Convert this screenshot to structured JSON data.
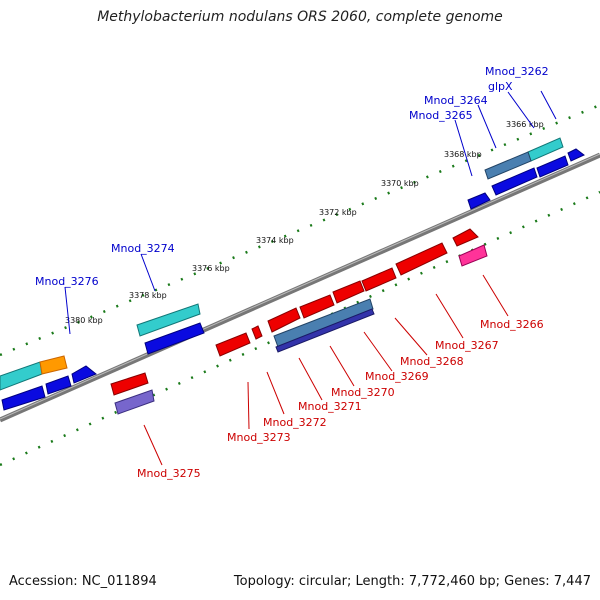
{
  "title": "Methylobacterium nodulans ORS 2060, complete genome",
  "footer": {
    "accession": "Accession: NC_011894",
    "summary": "Topology: circular; Length: 7,772,460 bp; Genes: 7,447"
  },
  "scale_labels": [
    "3366 kbp",
    "3368 kbp",
    "3370 kbp",
    "3372 kbp",
    "3374 kbp",
    "3376 kbp",
    "3378 kbp",
    "3380 kbp"
  ],
  "colors": {
    "backbone": "#808080",
    "label_forward": "#0000cc",
    "label_reverse": "#cc0000",
    "tick_green": "#1a7a1a"
  },
  "gene_labels_top": [
    "Mnod_3262",
    "glpX",
    "Mnod_3264",
    "Mnod_3265",
    "Mnod_3274",
    "Mnod_3276"
  ],
  "gene_labels_bottom": [
    "Mnod_3266",
    "Mnod_3267",
    "Mnod_3268",
    "Mnod_3269",
    "Mnod_3270",
    "Mnod_3271",
    "Mnod_3272",
    "Mnod_3273",
    "Mnod_3275"
  ]
}
